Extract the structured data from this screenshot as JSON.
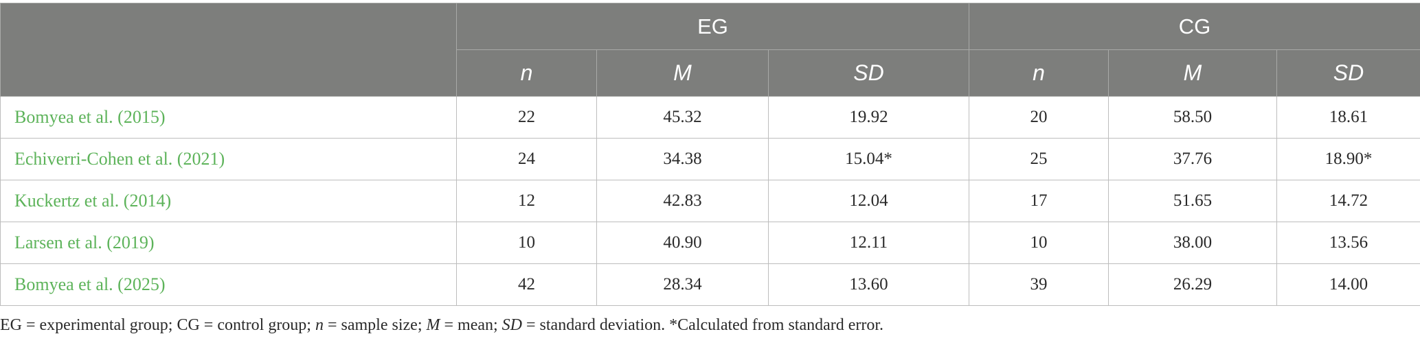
{
  "table": {
    "header": {
      "groups": [
        "EG",
        "CG"
      ],
      "columns": [
        "n",
        "M",
        "SD",
        "n",
        "M",
        "SD"
      ]
    },
    "rows": [
      {
        "study": "Bomyea et al. (2015)",
        "values": [
          "22",
          "45.32",
          "19.92",
          "20",
          "58.50",
          "18.61"
        ]
      },
      {
        "study": "Echiverri-Cohen et al. (2021)",
        "values": [
          "24",
          "34.38",
          "15.04*",
          "25",
          "37.76",
          "18.90*"
        ]
      },
      {
        "study": "Kuckertz et al. (2014)",
        "values": [
          "12",
          "42.83",
          "12.04",
          "17",
          "51.65",
          "14.72"
        ]
      },
      {
        "study": "Larsen et al. (2019)",
        "values": [
          "10",
          "40.90",
          "12.11",
          "10",
          "38.00",
          "13.56"
        ]
      },
      {
        "study": "Bomyea et al. (2025)",
        "values": [
          "42",
          "28.34",
          "13.60",
          "39",
          "26.29",
          "14.00"
        ]
      }
    ]
  },
  "footnote": {
    "part1": "EG = experimental group; CG = control group; ",
    "n_sym": "n",
    "part2": " = sample size; ",
    "m_sym": "M",
    "part3": " = mean; ",
    "sd_sym": "SD",
    "part4": " = standard deviation. *Calculated from standard error."
  },
  "colors": {
    "header_bg": "#7d7e7c",
    "header_text": "#ffffff",
    "study_link": "#5db35a",
    "border": "#bdbdbd"
  }
}
